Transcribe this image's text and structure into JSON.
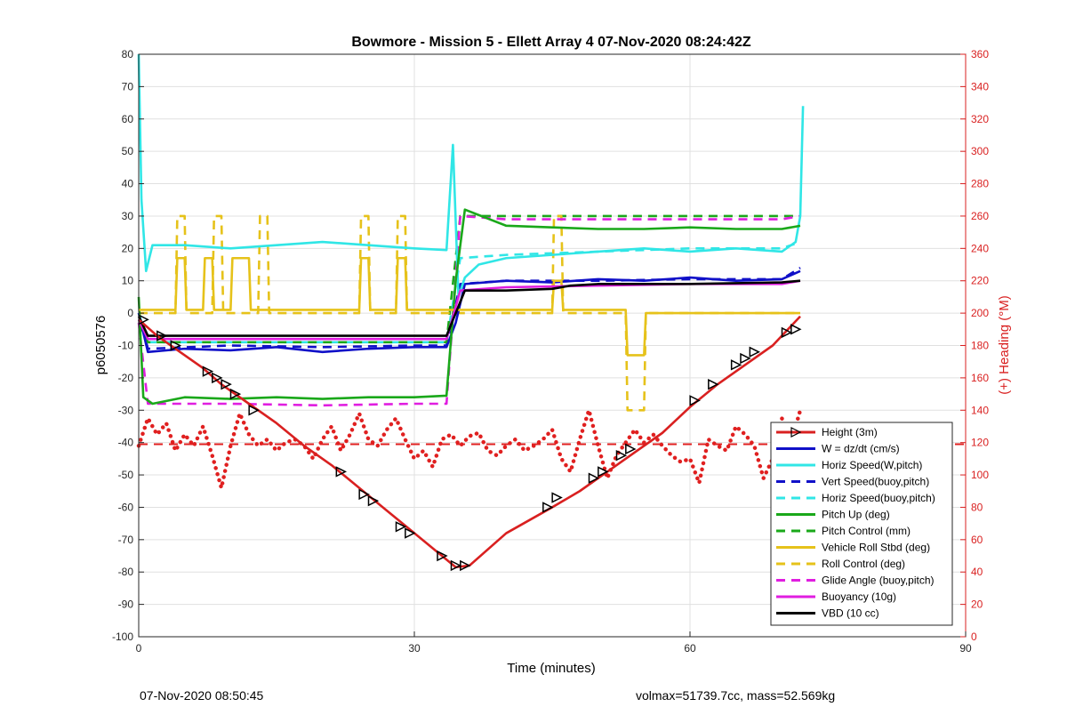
{
  "chart_data": {
    "type": "line",
    "title": "Bowmore - Mission 5 - Ellett Array 4 07-Nov-2020 08:24:42Z",
    "xlabel": "Time (minutes)",
    "ylabel_left": "p6050576",
    "ylabel_right": "(+) Heading (°M)",
    "xlim": [
      0,
      90
    ],
    "ylim_left": [
      -100,
      80
    ],
    "ylim_right": [
      0,
      360
    ],
    "xticks": [
      0,
      30,
      60,
      90
    ],
    "yticks_left": [
      80,
      70,
      60,
      50,
      40,
      30,
      20,
      10,
      0,
      -10,
      -20,
      -30,
      -40,
      -50,
      -60,
      -70,
      -80,
      -90,
      -100
    ],
    "yticks_right": [
      360,
      340,
      320,
      300,
      280,
      260,
      240,
      220,
      200,
      180,
      160,
      140,
      120,
      100,
      80,
      60,
      40,
      20,
      0
    ],
    "grid": true,
    "legend_position": "bottom-right",
    "colors": {
      "height": "#d92020",
      "w": "#1010c8",
      "horiz_speed": "#30e6e6",
      "pitch_up": "#1aa81a",
      "roll": "#e6c21a",
      "glide": "#e01ee0",
      "vbd": "#000000",
      "heading": "#e02020"
    },
    "series": [
      {
        "name": "Height (3m)",
        "color": "#d92020",
        "style": "solid",
        "axis": "left",
        "x": [
          0,
          2,
          4,
          7,
          9,
          12,
          15,
          18,
          21,
          24,
          27,
          30,
          33,
          34.5,
          36,
          40,
          45,
          48,
          51,
          54,
          57,
          60,
          63,
          66,
          69,
          72
        ],
        "y": [
          -2,
          -7,
          -11,
          -17,
          -22,
          -28,
          -34,
          -41,
          -47,
          -54,
          -61,
          -68,
          -75,
          -78.5,
          -78,
          -68,
          -60,
          -55,
          -49,
          -43,
          -37,
          -29,
          -22,
          -16,
          -10,
          -1
        ]
      },
      {
        "name": "W = dz/dt (cm/s)",
        "color": "#1010c8",
        "style": "solid",
        "axis": "left",
        "x": [
          0,
          1,
          5,
          10,
          15,
          20,
          25,
          30,
          33.5,
          34.5,
          35.5,
          40,
          45,
          50,
          55,
          60,
          65,
          70,
          72
        ],
        "y": [
          0,
          -12,
          -11,
          -11.5,
          -10.5,
          -12,
          -11,
          -10.5,
          -10.5,
          -3,
          9,
          10,
          9.5,
          10.5,
          10,
          11,
          10,
          10.5,
          13
        ]
      },
      {
        "name": "Horiz Speed(W,pitch)",
        "color": "#30e6e6",
        "style": "solid",
        "axis": "left",
        "x": [
          0,
          0.3,
          0.8,
          1.5,
          5,
          10,
          15,
          20,
          25,
          30,
          33.5,
          34.2,
          34.8,
          35.5,
          37,
          40,
          45,
          50,
          55,
          60,
          65,
          70,
          71.5,
          72,
          72.3
        ],
        "y": [
          80,
          35,
          13,
          21,
          21,
          20,
          21,
          22,
          21,
          20,
          19.5,
          52,
          5,
          11,
          15,
          17,
          18,
          19,
          20,
          19,
          20,
          19,
          22,
          30,
          64
        ]
      },
      {
        "name": "Vert Speed(buoy,pitch)",
        "color": "#1010c8",
        "style": "dashed",
        "axis": "left",
        "x": [
          0,
          1,
          10,
          20,
          30,
          33.5,
          35,
          40,
          50,
          60,
          70,
          72
        ],
        "y": [
          0,
          -11,
          -10,
          -10.5,
          -10,
          -10,
          9,
          10,
          10,
          10.5,
          10.5,
          14
        ]
      },
      {
        "name": "Horiz Speed(buoy,pitch)",
        "color": "#30e6e6",
        "style": "dashed",
        "axis": "left",
        "x": [
          0,
          1,
          10,
          20,
          30,
          33.5,
          35,
          40,
          50,
          60,
          70,
          72
        ],
        "y": [
          0,
          -9,
          -9,
          -9,
          -9,
          -9,
          17,
          18,
          19,
          20,
          20,
          22
        ]
      },
      {
        "name": "Pitch Up (deg)",
        "color": "#1aa81a",
        "style": "solid",
        "axis": "left",
        "x": [
          0,
          0.5,
          1.5,
          5,
          10,
          15,
          20,
          25,
          30,
          33.5,
          34.5,
          35.5,
          40,
          45,
          50,
          55,
          60,
          65,
          70,
          72
        ],
        "y": [
          5,
          -26,
          -28,
          -26,
          -26.5,
          -26,
          -26.5,
          -26,
          -26,
          -25.5,
          10,
          32,
          27,
          26.5,
          26,
          26,
          26.5,
          26,
          26,
          27
        ]
      },
      {
        "name": "Pitch Control (mm)",
        "color": "#1aa81a",
        "style": "dashed",
        "axis": "left",
        "x": [
          0,
          1,
          10,
          20,
          30,
          33.5,
          35,
          40,
          50,
          60,
          70,
          72
        ],
        "y": [
          -3,
          -9,
          -9,
          -9,
          -9,
          -9,
          30,
          30,
          30,
          30,
          30,
          30
        ]
      },
      {
        "name": "Vehicle Roll Stbd (deg)",
        "color": "#e6c21a",
        "style": "solid",
        "axis": "left",
        "x": [
          0,
          4,
          4.2,
          5,
          5.2,
          7,
          7.2,
          8,
          8.2,
          10,
          10.2,
          12,
          12.2,
          13,
          13.2,
          24,
          24.2,
          25,
          25.2,
          28,
          28.2,
          29,
          29.2,
          35,
          45,
          45.2,
          46,
          46.2,
          53,
          53.2,
          55,
          55.2,
          70,
          72
        ],
        "y": [
          1,
          1,
          17,
          17,
          1,
          1,
          17,
          17,
          1,
          1,
          17,
          17,
          1,
          1,
          1,
          1,
          17,
          17,
          1,
          1,
          17,
          17,
          1,
          1,
          1,
          10,
          10,
          1,
          1,
          -13,
          -13,
          0,
          0,
          0
        ]
      },
      {
        "name": "Roll Control (deg)",
        "color": "#e6c21a",
        "style": "dashed",
        "axis": "left",
        "x": [
          0,
          4,
          4.2,
          5,
          5.2,
          8,
          8.2,
          9,
          9.2,
          13,
          13.2,
          14,
          14.2,
          24,
          24.2,
          25,
          25.2,
          28,
          28.2,
          29,
          29.2,
          45,
          45.2,
          46,
          46.2,
          53,
          53.2,
          55,
          55.2,
          72
        ],
        "y": [
          0,
          0,
          30,
          30,
          0,
          0,
          30,
          30,
          0,
          0,
          30,
          30,
          0,
          0,
          30,
          30,
          0,
          0,
          30,
          30,
          0,
          0,
          30,
          30,
          0,
          0,
          -30,
          -30,
          0,
          0
        ]
      },
      {
        "name": "Glide Angle (buoy,pitch)",
        "color": "#e01ee0",
        "style": "dashed",
        "axis": "left",
        "x": [
          0,
          1,
          10,
          20,
          30,
          33.5,
          35,
          40,
          50,
          60,
          70,
          72
        ],
        "y": [
          -3,
          -28,
          -28,
          -28.5,
          -28,
          -28,
          30,
          29,
          29,
          29,
          29,
          30
        ]
      },
      {
        "name": "Buoyancy (10g)",
        "color": "#e01ee0",
        "style": "solid",
        "axis": "left",
        "x": [
          0,
          1,
          10,
          20,
          30,
          33.5,
          35,
          40,
          50,
          60,
          70,
          72
        ],
        "y": [
          -2,
          -8,
          -8,
          -8,
          -8,
          -8,
          7,
          8,
          8.5,
          9,
          9,
          10
        ]
      },
      {
        "name": "VBD (10 cc)",
        "color": "#000000",
        "style": "solid",
        "axis": "left",
        "x": [
          0,
          1,
          10,
          20,
          30,
          33.5,
          34.5,
          35.5,
          40,
          45,
          47,
          50,
          60,
          70,
          72
        ],
        "y": [
          -1,
          -7,
          -7,
          -7,
          -7,
          -7,
          0,
          7,
          7,
          7.5,
          8.5,
          9,
          9,
          9.5,
          10
        ]
      }
    ],
    "heading": {
      "axis": "right",
      "color": "#e02020",
      "style": "dotted",
      "x": [
        0,
        1,
        2,
        3,
        4,
        5,
        6,
        7,
        8,
        9,
        10,
        11,
        12,
        13,
        14,
        15,
        16,
        17,
        18,
        19,
        20,
        21,
        22,
        23,
        24,
        25,
        26,
        27,
        28,
        29,
        30,
        31,
        32,
        33,
        34,
        35,
        36,
        37,
        38,
        39,
        40,
        41,
        42,
        43,
        44,
        45,
        46,
        47,
        48,
        49,
        50,
        51,
        52,
        53,
        54,
        55,
        56,
        57,
        58,
        59,
        60,
        61,
        62,
        63,
        64,
        65,
        66,
        67,
        68,
        69,
        70,
        71,
        72
      ],
      "y": [
        118,
        135,
        125,
        132,
        115,
        125,
        118,
        130,
        112,
        92,
        118,
        138,
        125,
        118,
        122,
        115,
        120,
        122,
        118,
        110,
        122,
        130,
        115,
        125,
        138,
        122,
        118,
        128,
        135,
        122,
        110,
        115,
        105,
        122,
        125,
        118,
        124,
        126,
        115,
        112,
        118,
        122,
        115,
        118,
        122,
        128,
        110,
        102,
        122,
        140,
        118,
        98,
        112,
        120,
        128,
        120,
        125,
        118,
        112,
        108,
        110,
        95,
        122,
        118,
        115,
        130,
        125,
        118,
        98,
        110,
        135,
        120,
        140
      ]
    },
    "heading_reference": {
      "value": 119,
      "axis": "right",
      "color": "#e02020",
      "style": "dashed"
    },
    "height_markers": {
      "x": [
        0.5,
        2.5,
        4,
        7.5,
        8.5,
        9.5,
        10.5,
        12.5,
        22,
        24.5,
        25.5,
        28.5,
        29.5,
        33,
        34.5,
        35.5,
        44.5,
        45.5,
        49.5,
        50.5,
        52.5,
        53.5,
        60.5,
        62.5,
        65,
        66,
        67,
        70.5,
        71.5
      ],
      "y": [
        -2,
        -7,
        -10,
        -18,
        -20,
        -22,
        -25,
        -30,
        -49,
        -56,
        -58,
        -66,
        -68,
        -75,
        -78,
        -78,
        -60,
        -57,
        -51,
        -49,
        -44,
        -42,
        -27,
        -22,
        -16,
        -14,
        -12,
        -6,
        -5
      ],
      "color": "#000000"
    }
  },
  "footer": {
    "left": "07-Nov-2020 08:50:45",
    "right": "volmax=51739.7cc, mass=52.569kg"
  }
}
